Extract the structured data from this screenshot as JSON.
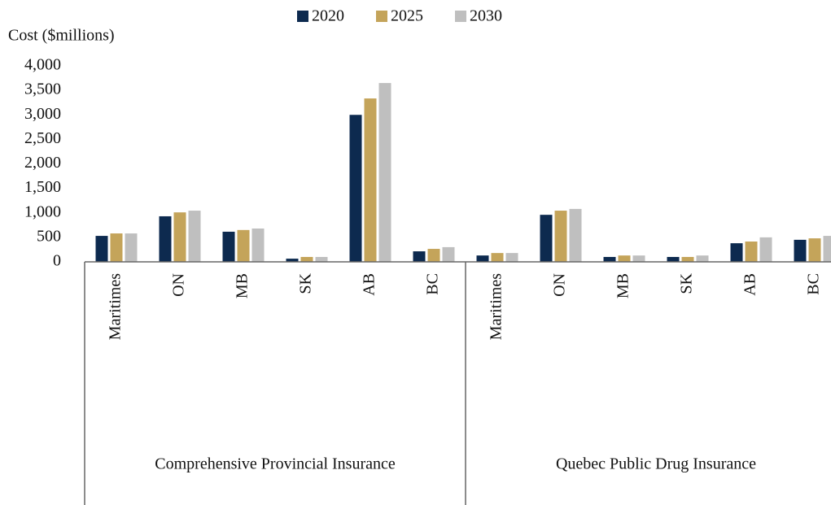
{
  "chart_data": {
    "type": "bar",
    "y_axis_title": "Cost ($millions)",
    "groups": [
      {
        "label": "Comprehensive Provincial Insurance",
        "categories": [
          "Maritimes",
          "ON",
          "MB",
          "SK",
          "AB",
          "BC"
        ]
      },
      {
        "label": "Quebec Public Drug Insurance",
        "categories": [
          "Maritimes",
          "ON",
          "MB",
          "SK",
          "AB",
          "BC"
        ]
      }
    ],
    "series": [
      {
        "name": "2020",
        "color": "#0d2a4f",
        "values": [
          530,
          930,
          615,
          65,
          3000,
          215,
          130,
          960,
          100,
          100,
          380,
          450
        ]
      },
      {
        "name": "2025",
        "color": "#c4a45a",
        "values": [
          580,
          1010,
          650,
          100,
          3335,
          265,
          180,
          1045,
          130,
          100,
          415,
          480
        ]
      },
      {
        "name": "2030",
        "color": "#bfbfbf",
        "values": [
          580,
          1045,
          680,
          100,
          3650,
          300,
          180,
          1080,
          130,
          130,
          500,
          530
        ]
      }
    ],
    "ylim": [
      0,
      4000
    ],
    "yticks": [
      0,
      500,
      {
        "value": 1000,
        "label": "1,000"
      },
      {
        "value": 1500,
        "label": "1,500"
      },
      {
        "value": 2000,
        "label": "2,000"
      },
      {
        "value": 2500,
        "label": "2,500"
      },
      {
        "value": 3000,
        "label": "3,000"
      },
      {
        "value": 3500,
        "label": "3,500"
      },
      {
        "value": 4000,
        "label": "4,000"
      }
    ],
    "grid": false,
    "legend": "top"
  }
}
